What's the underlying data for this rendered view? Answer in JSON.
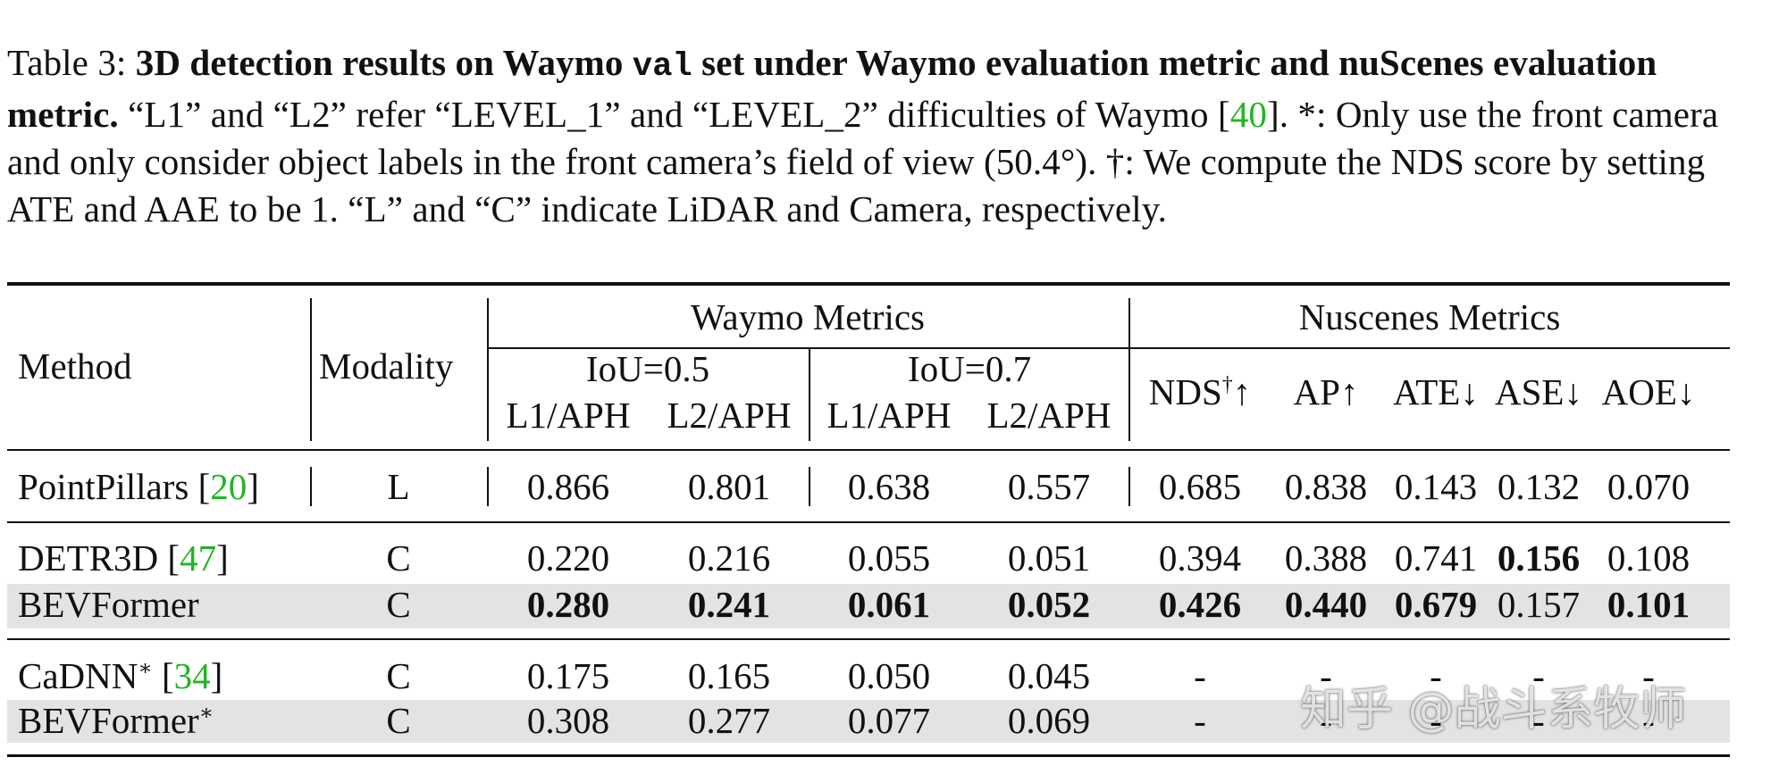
{
  "caption": {
    "prefix": "Table 3: ",
    "bold_part1": "3D detection results on Waymo ",
    "bold_mono": "val",
    "bold_part2": " set under Waymo evaluation metric and nuScenes evaluation metric.",
    "text1": " “L1” and “L2” refer “LEVEL_1” and “LEVEL_2” difficulties of Waymo [",
    "ref": "40",
    "text2": "]. *: Only use the front camera and only consider object labels in the front camera’s field of view (50.4°). †: We compute the NDS score by setting ATE and AAE to be 1. “L” and “C” indicate LiDAR and Camera, respectively."
  },
  "headers": {
    "method": "Method",
    "modality": "Modality",
    "waymo_group": "Waymo Metrics",
    "nuscenes_group": "Nuscenes Metrics",
    "iou05": "IoU=0.5",
    "iou07": "IoU=0.7",
    "l1aph": "L1/APH",
    "l2aph": "L2/APH",
    "nds": "NDS",
    "nds_sup": "†",
    "nds_arrow": "↑",
    "ap": "AP↑",
    "ate": "ATE↓",
    "ase": "ASE↓",
    "aoe": "AOE↓"
  },
  "rows": [
    {
      "method": "PointPillars [",
      "ref": "20",
      "close": "]",
      "sup": "",
      "modality": "L",
      "v": [
        "0.866",
        "0.801",
        "0.638",
        "0.557",
        "0.685",
        "0.838",
        "0.143",
        "0.132",
        "0.070"
      ]
    },
    {
      "method": "DETR3D [",
      "ref": "47",
      "close": "]",
      "sup": "",
      "modality": "C",
      "v": [
        "0.220",
        "0.216",
        "0.055",
        "0.051",
        "0.394",
        "0.388",
        "0.741",
        "0.156",
        "0.108"
      ]
    },
    {
      "method": "BEVFormer",
      "ref": "",
      "close": "",
      "sup": "",
      "modality": "C",
      "v": [
        "0.280",
        "0.241",
        "0.061",
        "0.052",
        "0.426",
        "0.440",
        "0.679",
        "0.157",
        "0.101"
      ]
    },
    {
      "method": "CaDNN",
      "ref": "34",
      "close": "]",
      "sup": "∗",
      "open": " [",
      "modality": "C",
      "v": [
        "0.175",
        "0.165",
        "0.050",
        "0.045",
        "-",
        "-",
        "-",
        "-",
        "-"
      ]
    },
    {
      "method": "BEVFormer",
      "ref": "",
      "close": "",
      "sup": "∗",
      "modality": "C",
      "v": [
        "0.308",
        "0.277",
        "0.077",
        "0.069",
        "-",
        "-",
        "-",
        "-",
        "-"
      ]
    }
  ],
  "watermark": "知乎 @战斗系牧师"
}
